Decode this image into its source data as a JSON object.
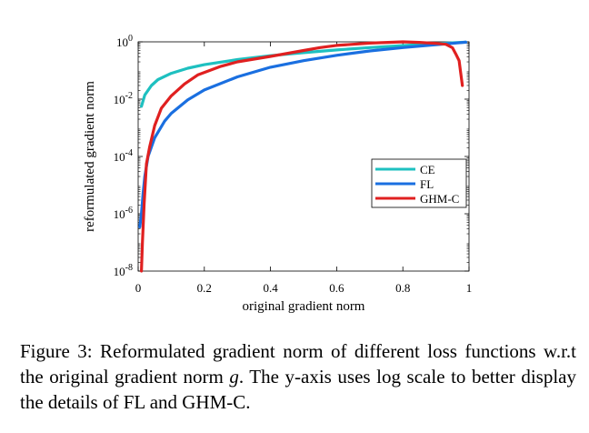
{
  "chart_data": {
    "type": "line",
    "xlabel": "original gradient norm",
    "ylabel": "reformulated gradient norm",
    "xlim": [
      0,
      1
    ],
    "ylim": [
      1e-08,
      1
    ],
    "y_scale": "log",
    "grid": false,
    "legend_position": "lower-right",
    "x_ticks": [
      0,
      0.2,
      0.4,
      0.6,
      0.8,
      1
    ],
    "x_tick_labels": [
      "0",
      "0.2",
      "0.4",
      "0.6",
      "0.8",
      "1"
    ],
    "y_ticks": [
      1e-08,
      1e-06,
      0.0001,
      0.01,
      1
    ],
    "y_tick_labels": [
      {
        "base": "10",
        "exp": "-8"
      },
      {
        "base": "10",
        "exp": "-6"
      },
      {
        "base": "10",
        "exp": "-4"
      },
      {
        "base": "10",
        "exp": "-2"
      },
      {
        "base": "10",
        "exp": "0"
      }
    ],
    "series": [
      {
        "name": "CE",
        "color": "#1ec0c0",
        "points": [
          [
            0.01,
            0.0056
          ],
          [
            0.02,
            0.014
          ],
          [
            0.04,
            0.03
          ],
          [
            0.06,
            0.048
          ],
          [
            0.1,
            0.08
          ],
          [
            0.15,
            0.12
          ],
          [
            0.2,
            0.16
          ],
          [
            0.3,
            0.24
          ],
          [
            0.4,
            0.33
          ],
          [
            0.5,
            0.42
          ],
          [
            0.6,
            0.52
          ],
          [
            0.7,
            0.63
          ],
          [
            0.8,
            0.74
          ],
          [
            0.9,
            0.86
          ],
          [
            0.99,
            0.98
          ]
        ]
      },
      {
        "name": "FL",
        "color": "#1a6fe0",
        "points": [
          [
            0.005,
            3.5e-07
          ],
          [
            0.01,
            1e-06
          ],
          [
            0.015,
            5.5e-06
          ],
          [
            0.02,
            2e-05
          ],
          [
            0.03,
            0.0001
          ],
          [
            0.05,
            0.00045
          ],
          [
            0.08,
            0.0017
          ],
          [
            0.1,
            0.0032
          ],
          [
            0.15,
            0.0095
          ],
          [
            0.2,
            0.021
          ],
          [
            0.3,
            0.06
          ],
          [
            0.4,
            0.13
          ],
          [
            0.5,
            0.22
          ],
          [
            0.6,
            0.34
          ],
          [
            0.7,
            0.48
          ],
          [
            0.8,
            0.63
          ],
          [
            0.9,
            0.8
          ],
          [
            0.99,
            0.97
          ]
        ]
      },
      {
        "name": "GHM-C",
        "color": "#e02020",
        "points": [
          [
            0.01,
            1e-08
          ],
          [
            0.013,
            1e-07
          ],
          [
            0.018,
            2.3e-06
          ],
          [
            0.025,
            5.5e-05
          ],
          [
            0.035,
            0.00022
          ],
          [
            0.05,
            0.0012
          ],
          [
            0.07,
            0.0048
          ],
          [
            0.1,
            0.013
          ],
          [
            0.14,
            0.034
          ],
          [
            0.18,
            0.07
          ],
          [
            0.25,
            0.14
          ],
          [
            0.3,
            0.2
          ],
          [
            0.4,
            0.31
          ],
          [
            0.5,
            0.5
          ],
          [
            0.55,
            0.63
          ],
          [
            0.6,
            0.75
          ],
          [
            0.7,
            0.9
          ],
          [
            0.8,
            1.0
          ],
          [
            0.85,
            0.96
          ],
          [
            0.9,
            0.88
          ],
          [
            0.93,
            0.82
          ],
          [
            0.95,
            0.62
          ],
          [
            0.96,
            0.38
          ],
          [
            0.97,
            0.22
          ],
          [
            0.975,
            0.08
          ],
          [
            0.98,
            0.03
          ]
        ]
      }
    ]
  },
  "caption": {
    "text_before": "Figure 3: Reformulated gradient norm of different loss functions w.r.t the original gradient norm ",
    "var": "g",
    "text_after": ". The y-axis uses log scale to better display the details of FL and GHM-C."
  }
}
